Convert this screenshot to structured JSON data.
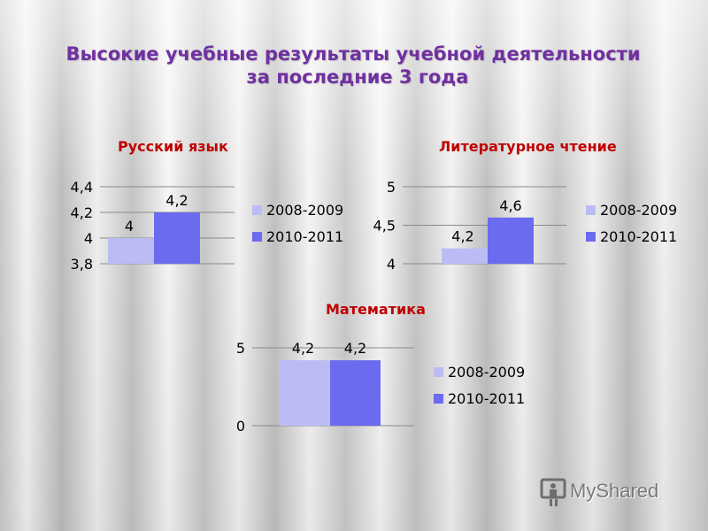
{
  "title": {
    "line1": "Высокие учебные результаты учебной деятельности",
    "line2": "за последние 3 года"
  },
  "colors": {
    "title": "#7030a0",
    "subtitle": "#c00000",
    "series1": "#bcbcf5",
    "series2": "#6b6bef"
  },
  "chart_data": [
    {
      "type": "bar",
      "title": "Русский язык",
      "series": [
        {
          "name": "2008-2009",
          "values": [
            4
          ]
        },
        {
          "name": "2010-2011",
          "values": [
            4.2
          ]
        }
      ],
      "data_labels": [
        "4",
        "4,2"
      ],
      "ylim": [
        3.8,
        4.4
      ],
      "yticks": [
        3.8,
        4,
        4.2,
        4.4
      ],
      "ytick_labels": [
        "3,8",
        "4",
        "4,2",
        "4,4"
      ],
      "grid": true,
      "legend": "right"
    },
    {
      "type": "bar",
      "title": "Литературное чтение",
      "series": [
        {
          "name": "2008-2009",
          "values": [
            4.2
          ]
        },
        {
          "name": "2010-2011",
          "values": [
            4.6
          ]
        }
      ],
      "data_labels": [
        "4,2",
        "4,6"
      ],
      "ylim": [
        4,
        5
      ],
      "yticks": [
        4,
        4.5,
        5
      ],
      "ytick_labels": [
        "4",
        "4,5",
        "5"
      ],
      "grid": true,
      "legend": "right"
    },
    {
      "type": "bar",
      "title": "Математика",
      "series": [
        {
          "name": "2008-2009",
          "values": [
            4.2
          ]
        },
        {
          "name": "2010-2011",
          "values": [
            4.2
          ]
        }
      ],
      "data_labels": [
        "4,2",
        "4,2"
      ],
      "ylim": [
        0,
        5
      ],
      "yticks": [
        0,
        5
      ],
      "ytick_labels": [
        "0",
        "5"
      ],
      "grid": true,
      "legend": "right"
    }
  ],
  "watermark": {
    "text": "MyShared",
    "icon": "monitor-person-icon"
  }
}
